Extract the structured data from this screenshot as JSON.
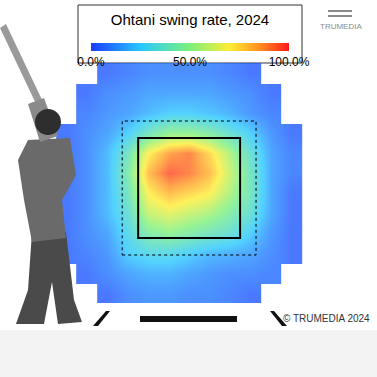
{
  "chart_data": {
    "type": "heatmap",
    "title": "Ohtani swing rate, 2024",
    "logo": "TRUMEDIA",
    "credit": "© TRUMEDIA 2024",
    "tick_labels": false,
    "grid": false,
    "xlim": [
      -3.08,
      3.06
    ],
    "ylim": [
      -1.28,
      6.26
    ],
    "x": [
      -2.0,
      -1.67,
      -1.33,
      -1.0,
      -0.67,
      -0.33,
      0,
      0.33,
      0.67,
      1.0,
      1.33,
      1.67
    ],
    "y": [
      0.4,
      0.8,
      1.2,
      1.6,
      2.0,
      2.4,
      2.8,
      3.2,
      3.6,
      4.0,
      4.4,
      4.8
    ],
    "cells": [
      [
        null,
        null,
        5,
        10,
        12,
        12,
        10,
        10,
        8,
        5,
        null,
        null
      ],
      [
        null,
        5,
        10,
        15,
        18,
        18,
        15,
        12,
        10,
        10,
        8,
        null
      ],
      [
        5,
        8,
        12,
        25,
        30,
        30,
        25,
        20,
        18,
        15,
        10,
        5
      ],
      [
        5,
        10,
        15,
        30,
        45,
        50,
        45,
        40,
        35,
        25,
        12,
        5
      ],
      [
        5,
        10,
        20,
        35,
        60,
        65,
        60,
        55,
        45,
        35,
        15,
        5
      ],
      [
        5,
        10,
        20,
        40,
        70,
        80,
        75,
        70,
        55,
        40,
        15,
        5
      ],
      [
        5,
        10,
        20,
        45,
        80,
        95,
        90,
        80,
        60,
        40,
        15,
        8
      ],
      [
        5,
        10,
        20,
        40,
        70,
        85,
        90,
        75,
        55,
        35,
        15,
        8
      ],
      [
        5,
        10,
        15,
        25,
        40,
        50,
        50,
        45,
        35,
        25,
        12,
        5
      ],
      [
        null,
        8,
        12,
        15,
        20,
        25,
        25,
        22,
        18,
        12,
        8,
        null
      ],
      [
        null,
        5,
        10,
        12,
        15,
        15,
        15,
        15,
        12,
        10,
        5,
        null
      ],
      [
        null,
        null,
        5,
        8,
        10,
        10,
        10,
        10,
        8,
        5,
        null,
        null
      ]
    ],
    "colorbar": {
      "range": [
        0,
        100
      ],
      "ticks": [
        {
          "value": 0,
          "label": "0.0%"
        },
        {
          "value": 50,
          "label": "50.0%"
        },
        {
          "value": 100,
          "label": "100.0%"
        }
      ]
    },
    "strike_zone": {
      "x": [
        -0.83,
        0.83
      ],
      "y": [
        1.5,
        3.5
      ]
    },
    "shadow_zone": {
      "x": [
        -1.09,
        1.09
      ],
      "y": [
        1.16,
        3.84
      ]
    }
  }
}
